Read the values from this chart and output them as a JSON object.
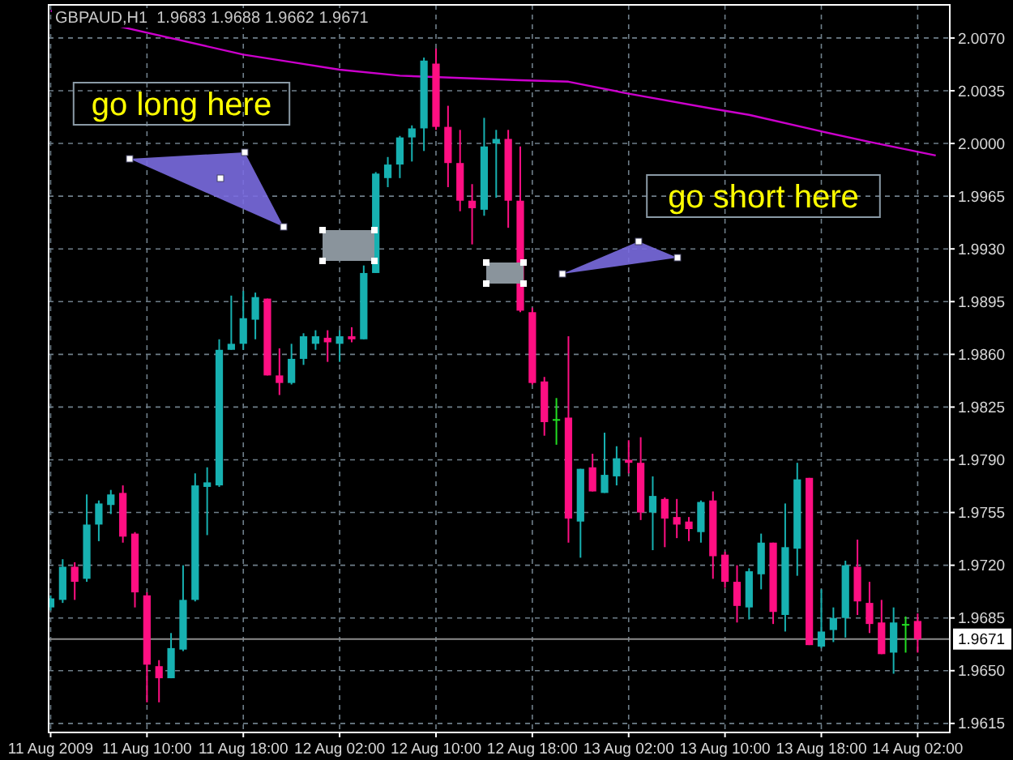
{
  "chart_data": {
    "type": "candlestick",
    "title": "GBPAUD,H1  1.9683 1.9688 1.9662 1.9671",
    "x": [
      "2009-08-11T02:00",
      "2009-08-11T03:00",
      "2009-08-11T04:00",
      "2009-08-11T05:00",
      "2009-08-11T06:00",
      "2009-08-11T07:00",
      "2009-08-11T08:00",
      "2009-08-11T09:00",
      "2009-08-11T10:00",
      "2009-08-11T11:00",
      "2009-08-11T12:00",
      "2009-08-11T13:00",
      "2009-08-11T14:00",
      "2009-08-11T15:00",
      "2009-08-11T16:00",
      "2009-08-11T17:00",
      "2009-08-11T18:00",
      "2009-08-11T19:00",
      "2009-08-11T20:00",
      "2009-08-11T21:00",
      "2009-08-11T22:00",
      "2009-08-11T23:00",
      "2009-08-12T00:00",
      "2009-08-12T01:00",
      "2009-08-12T02:00",
      "2009-08-12T03:00",
      "2009-08-12T04:00",
      "2009-08-12T05:00",
      "2009-08-12T06:00",
      "2009-08-12T07:00",
      "2009-08-12T08:00",
      "2009-08-12T09:00",
      "2009-08-12T10:00",
      "2009-08-12T11:00",
      "2009-08-12T12:00",
      "2009-08-12T13:00",
      "2009-08-12T14:00",
      "2009-08-12T15:00",
      "2009-08-12T16:00",
      "2009-08-12T17:00",
      "2009-08-12T18:00",
      "2009-08-12T19:00",
      "2009-08-12T20:00",
      "2009-08-12T21:00",
      "2009-08-12T22:00",
      "2009-08-12T23:00",
      "2009-08-13T00:00",
      "2009-08-13T01:00",
      "2009-08-13T02:00",
      "2009-08-13T03:00",
      "2009-08-13T04:00",
      "2009-08-13T05:00",
      "2009-08-13T06:00",
      "2009-08-13T07:00",
      "2009-08-13T08:00",
      "2009-08-13T09:00",
      "2009-08-13T10:00",
      "2009-08-13T11:00",
      "2009-08-13T12:00",
      "2009-08-13T13:00",
      "2009-08-13T14:00",
      "2009-08-13T15:00",
      "2009-08-13T16:00",
      "2009-08-13T17:00",
      "2009-08-13T18:00",
      "2009-08-13T19:00",
      "2009-08-13T20:00",
      "2009-08-13T21:00",
      "2009-08-13T22:00",
      "2009-08-13T23:00",
      "2009-08-14T00:00",
      "2009-08-14T01:00",
      "2009-08-14T02:00"
    ],
    "ohlc": [
      [
        1.9692,
        1.97,
        1.969,
        1.9698
      ],
      [
        1.9697,
        1.9724,
        1.9695,
        1.9719
      ],
      [
        1.9719,
        1.9722,
        1.9697,
        1.9709
      ],
      [
        1.9711,
        1.9767,
        1.9709,
        1.9747
      ],
      [
        1.9747,
        1.9763,
        1.9736,
        1.9761
      ],
      [
        1.976,
        1.977,
        1.9754,
        1.9767
      ],
      [
        1.9768,
        1.9773,
        1.9735,
        1.9739
      ],
      [
        1.9741,
        1.9742,
        1.9692,
        1.9702
      ],
      [
        1.97,
        1.9702,
        1.9629,
        1.9654
      ],
      [
        1.9653,
        1.9657,
        1.9629,
        1.9645
      ],
      [
        1.9645,
        1.9675,
        1.9645,
        1.9665
      ],
      [
        1.9664,
        1.972,
        1.9663,
        1.9697
      ],
      [
        1.9697,
        1.9781,
        1.9696,
        1.9773
      ],
      [
        1.9772,
        1.9785,
        1.974,
        1.9775
      ],
      [
        1.9773,
        1.987,
        1.9772,
        1.9863
      ],
      [
        1.9863,
        1.9899,
        1.9863,
        1.9867
      ],
      [
        1.9867,
        1.9902,
        1.9863,
        1.9884
      ],
      [
        1.9883,
        1.9901,
        1.987,
        1.9898
      ],
      [
        1.9897,
        1.9897,
        1.9846,
        1.9846
      ],
      [
        1.9846,
        1.9864,
        1.9833,
        1.9841
      ],
      [
        1.9841,
        1.9867,
        1.984,
        1.9857
      ],
      [
        1.9857,
        1.9874,
        1.9853,
        1.9872
      ],
      [
        1.9867,
        1.9876,
        1.9863,
        1.9872
      ],
      [
        1.9871,
        1.9876,
        1.9855,
        1.9868
      ],
      [
        1.9867,
        1.9876,
        1.9855,
        1.9872
      ],
      [
        1.9872,
        1.9878,
        1.9868,
        1.987
      ],
      [
        1.987,
        1.9919,
        1.987,
        1.9914
      ],
      [
        1.9914,
        1.9981,
        1.9914,
        1.998
      ],
      [
        1.9977,
        1.9991,
        1.9971,
        1.9986
      ],
      [
        1.9986,
        2.0005,
        1.9977,
        2.0004
      ],
      [
        2.0004,
        2.0012,
        1.9988,
        2.001
      ],
      [
        2.001,
        2.0057,
        1.9995,
        2.0055
      ],
      [
        2.0053,
        2.0063,
        2.0009,
        2.0011
      ],
      [
        2.0011,
        2.0025,
        1.9971,
        1.9987
      ],
      [
        1.9987,
        2.0009,
        1.9955,
        1.9962
      ],
      [
        1.9962,
        1.9973,
        1.9933,
        1.9957
      ],
      [
        1.9956,
        2.0017,
        1.9952,
        1.9998
      ],
      [
        2.0,
        2.0009,
        1.9964,
        2.0003
      ],
      [
        2.0003,
        2.0009,
        1.9944,
        1.9962
      ],
      [
        1.9962,
        1.9998,
        1.9888,
        1.9889
      ],
      [
        1.9888,
        1.9891,
        1.984,
        1.9841
      ],
      [
        1.9842,
        1.9845,
        1.9806,
        1.9815
      ],
      [
        1.9817,
        1.9831,
        1.98,
        1.9817
      ],
      [
        1.9818,
        1.9872,
        1.9735,
        1.9751
      ],
      [
        1.9749,
        1.9784,
        1.9725,
        1.9784
      ],
      [
        1.9785,
        1.9794,
        1.9769,
        1.9769
      ],
      [
        1.9768,
        1.9808,
        1.9768,
        1.978
      ],
      [
        1.9779,
        1.9799,
        1.9773,
        1.9791
      ],
      [
        1.979,
        1.9803,
        1.9781,
        1.9788
      ],
      [
        1.9788,
        1.9805,
        1.975,
        1.9755
      ],
      [
        1.9755,
        1.9779,
        1.973,
        1.9766
      ],
      [
        1.9764,
        1.9765,
        1.9732,
        1.9751
      ],
      [
        1.9752,
        1.9764,
        1.9738,
        1.9747
      ],
      [
        1.9749,
        1.9752,
        1.9736,
        1.9744
      ],
      [
        1.9742,
        1.9763,
        1.9735,
        1.9762
      ],
      [
        1.9763,
        1.9769,
        1.9711,
        1.9726
      ],
      [
        1.9727,
        1.9729,
        1.9705,
        1.9709
      ],
      [
        1.9709,
        1.972,
        1.9682,
        1.9693
      ],
      [
        1.9692,
        1.9718,
        1.9684,
        1.9716
      ],
      [
        1.9714,
        1.9741,
        1.9704,
        1.9735
      ],
      [
        1.9735,
        1.9735,
        1.9681,
        1.9689
      ],
      [
        1.9687,
        1.9761,
        1.9676,
        1.9732
      ],
      [
        1.9731,
        1.9788,
        1.9713,
        1.9777
      ],
      [
        1.9778,
        1.9778,
        1.9667,
        1.9667
      ],
      [
        1.9666,
        1.9704,
        1.9665,
        1.9676
      ],
      [
        1.9677,
        1.9692,
        1.9669,
        1.9685
      ],
      [
        1.9685,
        1.9723,
        1.9672,
        1.972
      ],
      [
        1.9719,
        1.9737,
        1.9687,
        1.9696
      ],
      [
        1.9695,
        1.9709,
        1.9675,
        1.9681
      ],
      [
        1.9682,
        1.9697,
        1.9661,
        1.9661
      ],
      [
        1.9662,
        1.9692,
        1.9648,
        1.9682
      ],
      [
        1.9681,
        1.9686,
        1.9662,
        1.9681
      ],
      [
        1.9683,
        1.9688,
        1.9662,
        1.9671
      ]
    ],
    "colors": [
      "#17b1b1",
      "#17b1b1",
      "#ff0f82",
      "#17b1b1",
      "#17b1b1",
      "#17b1b1",
      "#ff0f82",
      "#ff0f82",
      "#ff0f82",
      "#ff0f82",
      "#17b1b1",
      "#17b1b1",
      "#17b1b1",
      "#17b1b1",
      "#17b1b1",
      "#17b1b1",
      "#17b1b1",
      "#17b1b1",
      "#ff0f82",
      "#ff0f82",
      "#17b1b1",
      "#17b1b1",
      "#17b1b1",
      "#ff0f82",
      "#17b1b1",
      "#ff0f82",
      "#17b1b1",
      "#17b1b1",
      "#17b1b1",
      "#17b1b1",
      "#17b1b1",
      "#17b1b1",
      "#ff0f82",
      "#ff0f82",
      "#ff0f82",
      "#ff0f82",
      "#17b1b1",
      "#17b1b1",
      "#ff0f82",
      "#ff0f82",
      "#ff0f82",
      "#ff0f82",
      "#22dd22",
      "#ff0f82",
      "#17b1b1",
      "#ff0f82",
      "#17b1b1",
      "#17b1b1",
      "#ff0f82",
      "#ff0f82",
      "#17b1b1",
      "#ff0f82",
      "#ff0f82",
      "#ff0f82",
      "#17b1b1",
      "#ff0f82",
      "#ff0f82",
      "#ff0f82",
      "#17b1b1",
      "#17b1b1",
      "#ff0f82",
      "#17b1b1",
      "#17b1b1",
      "#ff0f82",
      "#17b1b1",
      "#17b1b1",
      "#17b1b1",
      "#ff0f82",
      "#ff0f82",
      "#ff0f82",
      "#17b1b1",
      "#22dd22",
      "#ff0f82"
    ],
    "series": [
      {
        "type": "line",
        "color": "#cc00cc",
        "x": [
          "2009-08-11T02:00",
          "2009-08-11T18:00",
          "2009-08-11T22:00",
          "2009-08-12T02:00",
          "2009-08-12T07:00",
          "2009-08-12T17:00",
          "2009-08-12T21:00",
          "2009-08-13T02:00",
          "2009-08-13T09:00",
          "2009-08-13T12:00",
          "2009-08-13T18:00",
          "2009-08-13T22:00",
          "2009-08-14T03:30"
        ],
        "values": [
          2.0088,
          2.0059,
          2.0054,
          2.0049,
          2.0045,
          2.0042,
          2.0041,
          2.0033,
          2.0023,
          2.0019,
          2.0008,
          2.0001,
          1.9992
        ]
      }
    ],
    "xlim": [
      "2009-08-11T01:50",
      "2009-08-14T04:40"
    ],
    "xticks": [
      {
        "value": "2009-08-11T02:00",
        "label": "11 Aug 2009"
      },
      {
        "value": "2009-08-11T10:00",
        "label": "11 Aug 10:00"
      },
      {
        "value": "2009-08-11T18:00",
        "label": "11 Aug 18:00"
      },
      {
        "value": "2009-08-12T02:00",
        "label": "12 Aug 02:00"
      },
      {
        "value": "2009-08-12T10:00",
        "label": "12 Aug 10:00"
      },
      {
        "value": "2009-08-12T18:00",
        "label": "12 Aug 18:00"
      },
      {
        "value": "2009-08-13T02:00",
        "label": "13 Aug 02:00"
      },
      {
        "value": "2009-08-13T10:00",
        "label": "13 Aug 10:00"
      },
      {
        "value": "2009-08-13T18:00",
        "label": "13 Aug 18:00"
      },
      {
        "value": "2009-08-14T02:00",
        "label": "14 Aug 02:00"
      }
    ],
    "ylim": [
      1.9609,
      2.0092
    ],
    "yticks": [
      {
        "value": 2.007,
        "label": "2.0070"
      },
      {
        "value": 2.0035,
        "label": "2.0035"
      },
      {
        "value": 2,
        "label": "2.0000"
      },
      {
        "value": 1.9965,
        "label": "1.9965"
      },
      {
        "value": 1.993,
        "label": "1.9930"
      },
      {
        "value": 1.9895,
        "label": "1.9895"
      },
      {
        "value": 1.986,
        "label": "1.9860"
      },
      {
        "value": 1.9825,
        "label": "1.9825"
      },
      {
        "value": 1.979,
        "label": "1.9790"
      },
      {
        "value": 1.9755,
        "label": "1.9755"
      },
      {
        "value": 1.972,
        "label": "1.9720"
      },
      {
        "value": 1.9685,
        "label": "1.9685"
      },
      {
        "value": 1.965,
        "label": "1.9650"
      },
      {
        "value": 1.9615,
        "label": "1.9615"
      }
    ],
    "grid": true,
    "ref_lines": [
      {
        "axis": "y",
        "value": 1.9671,
        "label": "1.9671",
        "color": "#8c8c8c"
      }
    ],
    "annotations": [
      "go long here",
      "go short here"
    ]
  }
}
